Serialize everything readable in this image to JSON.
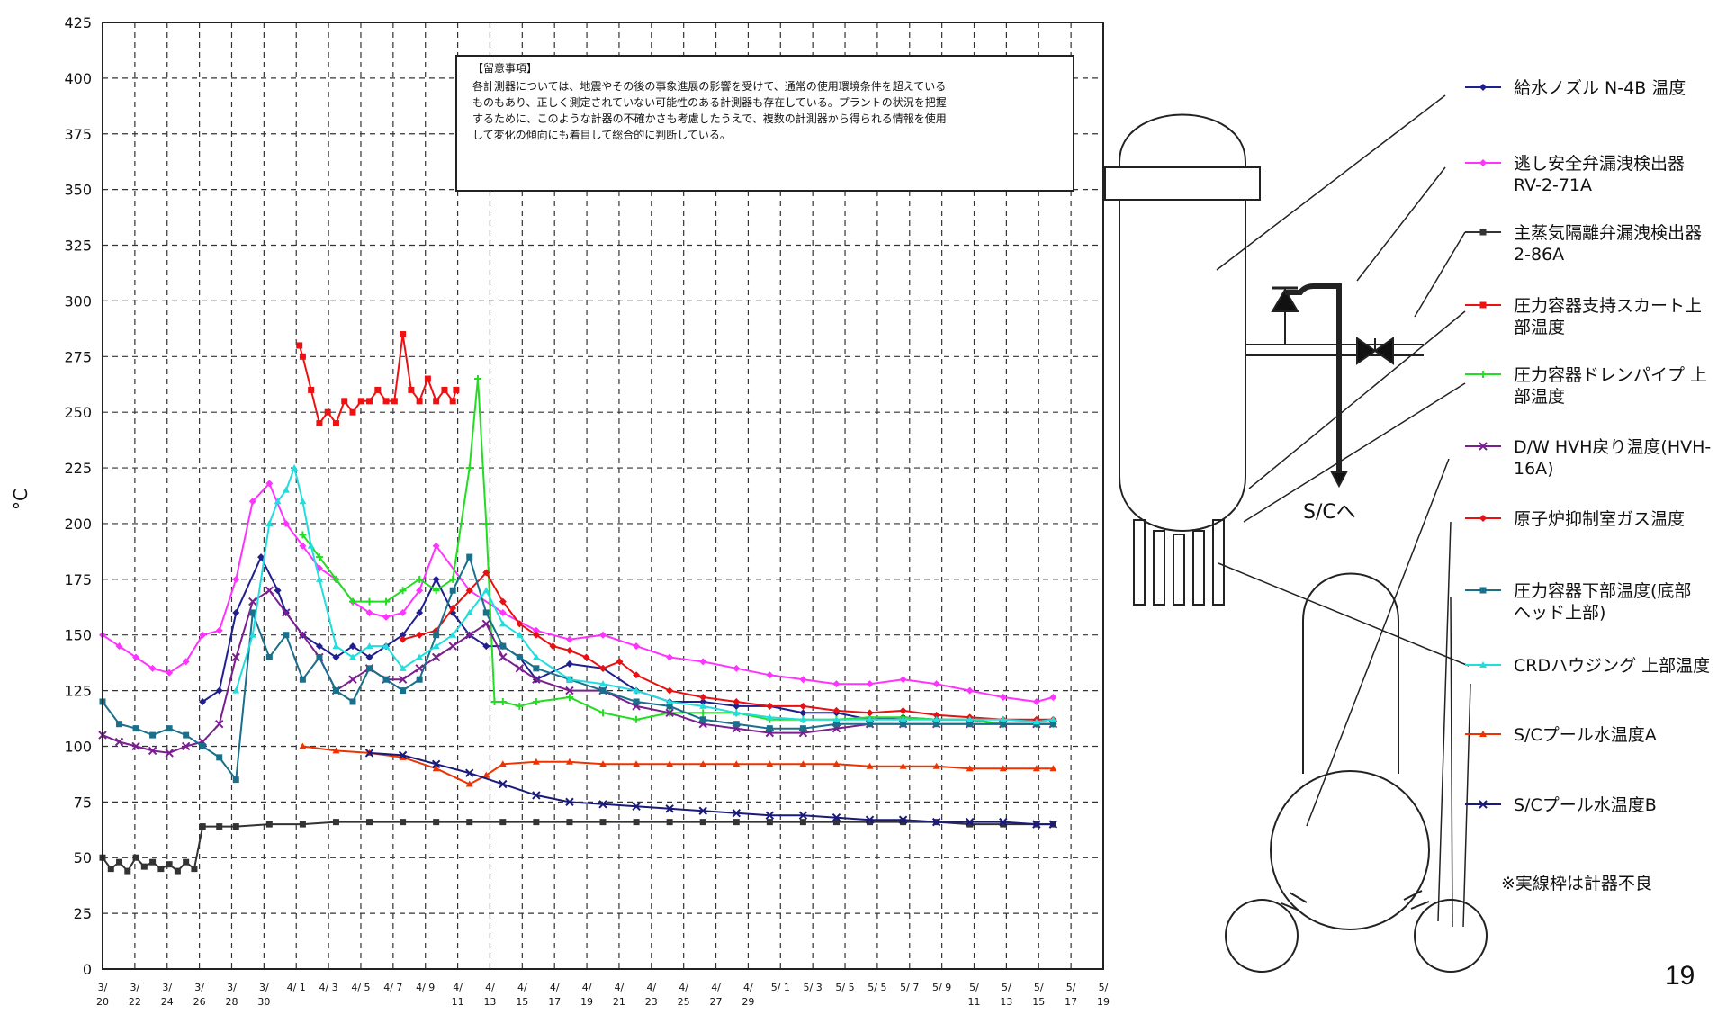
{
  "page_number": "19",
  "footnote": "※実線枠は計器不良",
  "sc_label": "S/Cへ",
  "note": {
    "title": "【留意事項】",
    "lines": [
      "各計測器については、地震やその後の事象進展の影響を受けて、通常の使用環境条件を超えている",
      "ものもあり、正しく測定されていない可能性のある計測器も存在している。プラントの状況を把握",
      "するために、このような計器の不確かさも考慮したうえで、複数の計測器から得られる情報を使用",
      "して変化の傾向にも着目して総合的に判断している。"
    ]
  },
  "chart_data": {
    "type": "line",
    "title": "",
    "xlabel": "",
    "ylabel": "°C",
    "ylim": [
      0,
      425
    ],
    "yticks": [
      0,
      25,
      50,
      75,
      100,
      125,
      150,
      175,
      200,
      225,
      250,
      275,
      300,
      325,
      350,
      375,
      400,
      425
    ],
    "x_range": [
      0,
      60
    ],
    "grid": true,
    "xtick_labels": [
      [
        "3/",
        "20"
      ],
      [
        "3/",
        "22"
      ],
      [
        "3/",
        "24"
      ],
      [
        "3/",
        "26"
      ],
      [
        "3/",
        "28"
      ],
      [
        "3/",
        "30"
      ],
      [
        "4/ 1",
        ""
      ],
      [
        "4/ 3",
        ""
      ],
      [
        "4/ 5",
        ""
      ],
      [
        "4/ 7",
        ""
      ],
      [
        "4/ 9",
        ""
      ],
      [
        "4/",
        "11"
      ],
      [
        "4/",
        "13"
      ],
      [
        "4/",
        "15"
      ],
      [
        "4/",
        "17"
      ],
      [
        "4/",
        "19"
      ],
      [
        "4/",
        "21"
      ],
      [
        "4/",
        "23"
      ],
      [
        "4/",
        "25"
      ],
      [
        "4/",
        "27"
      ],
      [
        "4/",
        "29"
      ],
      [
        "5/ 1",
        ""
      ],
      [
        "5/ 3",
        ""
      ],
      [
        "5/ 5",
        ""
      ],
      [
        "5/ 5",
        ""
      ],
      [
        "5/ 7",
        ""
      ],
      [
        "5/ 9",
        ""
      ],
      [
        "5/",
        "11"
      ],
      [
        "5/",
        "13"
      ],
      [
        "5/",
        "15"
      ],
      [
        "5/",
        "17"
      ],
      [
        "5/",
        "19"
      ]
    ],
    "series": [
      {
        "name": "給水ノズル N-4B 温度",
        "color": "#1f1f8f",
        "marker": "diamond",
        "x": [
          6,
          7,
          8,
          9.5,
          10.5,
          11,
          12,
          13,
          14,
          15,
          16,
          17,
          18,
          19,
          20,
          21,
          22,
          23,
          24,
          25,
          26,
          28,
          30,
          32,
          34,
          36,
          38,
          40,
          42,
          44,
          46,
          48,
          50,
          52,
          54,
          56,
          57
        ],
        "y": [
          120,
          125,
          160,
          185,
          170,
          160,
          150,
          145,
          140,
          145,
          140,
          145,
          150,
          160,
          175,
          160,
          150,
          145,
          145,
          140,
          130,
          137,
          135,
          125,
          120,
          120,
          118,
          118,
          115,
          115,
          112,
          113,
          112,
          112,
          110,
          110,
          110
        ]
      },
      {
        "name": "逃し安全弁漏洩検出器\nRV-2-71A",
        "color": "#ff33ff",
        "marker": "diamond",
        "x": [
          0,
          1,
          2,
          3,
          4,
          5,
          6,
          7,
          8,
          9,
          10,
          11,
          12,
          13,
          14,
          15,
          16,
          17,
          18,
          19,
          20,
          22,
          24,
          26,
          28,
          30,
          32,
          34,
          36,
          38,
          40,
          42,
          44,
          46,
          48,
          50,
          52,
          54,
          56,
          57
        ],
        "y": [
          150,
          145,
          140,
          135,
          133,
          138,
          150,
          152,
          175,
          210,
          218,
          200,
          190,
          180,
          175,
          165,
          160,
          158,
          160,
          170,
          190,
          170,
          160,
          152,
          148,
          150,
          145,
          140,
          138,
          135,
          132,
          130,
          128,
          128,
          130,
          128,
          125,
          122,
          120,
          122
        ]
      },
      {
        "name": "主蒸気隔離弁漏洩検出器\n2-86A",
        "color": "#333333",
        "marker": "square",
        "x": [
          0,
          0.5,
          1,
          1.5,
          2,
          2.5,
          3,
          3.5,
          4,
          4.5,
          5,
          5.5,
          6,
          7,
          8,
          10,
          12,
          14,
          16,
          18,
          20,
          22,
          24,
          26,
          28,
          30,
          32,
          34,
          36,
          38,
          40,
          42,
          44,
          46,
          48,
          50,
          52,
          54,
          56,
          57
        ],
        "y": [
          50,
          45,
          48,
          44,
          50,
          46,
          48,
          45,
          47,
          44,
          48,
          45,
          64,
          64,
          64,
          65,
          65,
          66,
          66,
          66,
          66,
          66,
          66,
          66,
          66,
          66,
          66,
          66,
          66,
          66,
          66,
          66,
          66,
          66,
          66,
          66,
          65,
          65,
          65,
          65
        ]
      },
      {
        "name": "圧力容器支持スカート上\n部温度",
        "color": "#ee1111",
        "marker": "square",
        "x": [
          11.8,
          12,
          12.5,
          13,
          13.5,
          14,
          14.5,
          15,
          15.5,
          16,
          16.5,
          17,
          17.5,
          18,
          18.5,
          19,
          19.5,
          20,
          20.5,
          21,
          21.2
        ],
        "y": [
          280,
          275,
          260,
          245,
          250,
          245,
          255,
          250,
          255,
          255,
          260,
          255,
          255,
          285,
          260,
          255,
          265,
          255,
          260,
          255,
          260
        ]
      },
      {
        "name": "圧力容器ドレンパイプ 上\n部温度",
        "color": "#22dd22",
        "marker": "plus",
        "x": [
          12,
          13,
          14,
          15,
          16,
          17,
          18,
          19,
          20,
          21,
          22,
          22.5,
          23,
          23.5,
          24,
          25,
          26,
          28,
          30,
          32,
          34,
          36,
          38,
          40,
          42,
          44,
          46,
          48,
          50,
          52,
          54,
          56,
          57
        ],
        "y": [
          195,
          185,
          175,
          165,
          165,
          165,
          170,
          175,
          170,
          175,
          225,
          265,
          200,
          120,
          120,
          118,
          120,
          122,
          115,
          112,
          115,
          115,
          115,
          112,
          112,
          112,
          113,
          113,
          112,
          112,
          110,
          110,
          110
        ]
      },
      {
        "name": "D/W HVH戻り温度(HVH-\n16A)",
        "color": "#7a1f8f",
        "marker": "x",
        "x": [
          0,
          1,
          2,
          3,
          4,
          5,
          6,
          7,
          8,
          9,
          10,
          11,
          12,
          13,
          14,
          15,
          16,
          17,
          18,
          19,
          20,
          21,
          22,
          23,
          24,
          25,
          26,
          28,
          30,
          32,
          34,
          36,
          38,
          40,
          42,
          44,
          46,
          48,
          50,
          52,
          54,
          56,
          57
        ],
        "y": [
          105,
          102,
          100,
          98,
          97,
          100,
          102,
          110,
          140,
          165,
          170,
          160,
          150,
          140,
          125,
          130,
          135,
          130,
          130,
          135,
          140,
          145,
          150,
          155,
          140,
          135,
          130,
          125,
          125,
          118,
          115,
          110,
          108,
          106,
          106,
          108,
          110,
          110,
          110,
          110,
          110,
          110,
          110
        ]
      },
      {
        "name": "原子炉抑制室ガス温度",
        "color": "#e81010",
        "marker": "diamond",
        "x": [
          18,
          19,
          20,
          21,
          22,
          23,
          24,
          25,
          26,
          27,
          28,
          29,
          30,
          31,
          32,
          34,
          36,
          38,
          40,
          42,
          44,
          46,
          48,
          50,
          52,
          54,
          56,
          57
        ],
        "y": [
          148,
          150,
          152,
          162,
          170,
          178,
          165,
          155,
          150,
          145,
          143,
          140,
          135,
          138,
          132,
          125,
          122,
          120,
          118,
          118,
          116,
          115,
          116,
          114,
          113,
          112,
          112,
          112
        ]
      },
      {
        "name": "圧力容器下部温度(底部\nヘッド上部)",
        "color": "#1a6f8a",
        "marker": "square",
        "x": [
          0,
          1,
          2,
          3,
          4,
          5,
          6,
          7,
          8,
          9,
          10,
          11,
          12,
          13,
          14,
          15,
          16,
          17,
          18,
          19,
          20,
          21,
          22,
          23,
          24,
          25,
          26,
          28,
          30,
          32,
          34,
          36,
          38,
          40,
          42,
          44,
          46,
          48,
          50,
          52,
          54,
          56,
          57
        ],
        "y": [
          120,
          110,
          108,
          105,
          108,
          105,
          100,
          95,
          85,
          160,
          140,
          150,
          130,
          140,
          125,
          120,
          135,
          130,
          125,
          130,
          150,
          170,
          185,
          160,
          145,
          140,
          135,
          130,
          125,
          120,
          118,
          112,
          110,
          108,
          108,
          110,
          110,
          110,
          110,
          110,
          110,
          110,
          110
        ]
      },
      {
        "name": "CRDハウジング 上部温度",
        "color": "#22dddd",
        "marker": "triangle",
        "x": [
          8,
          9,
          10,
          10.5,
          11,
          11.5,
          12,
          12.5,
          13,
          14,
          15,
          16,
          17,
          18,
          19,
          20,
          21,
          22,
          23,
          24,
          25,
          26,
          28,
          30,
          32,
          34,
          36,
          38,
          40,
          42,
          44,
          46,
          48,
          50,
          52,
          54,
          56,
          57
        ],
        "y": [
          125,
          150,
          200,
          210,
          215,
          225,
          210,
          190,
          175,
          145,
          140,
          145,
          145,
          135,
          140,
          145,
          150,
          160,
          170,
          155,
          150,
          140,
          130,
          128,
          125,
          120,
          118,
          115,
          113,
          112,
          112,
          112,
          112,
          112,
          112,
          112,
          111,
          112
        ]
      },
      {
        "name": "S/Cプール水温度A",
        "color": "#ee3300",
        "marker": "triangle",
        "x": [
          12,
          14,
          16,
          18,
          20,
          22,
          23,
          24,
          26,
          28,
          30,
          32,
          34,
          36,
          38,
          40,
          42,
          44,
          46,
          48,
          50,
          52,
          54,
          56,
          57
        ],
        "y": [
          100,
          98,
          97,
          95,
          90,
          83,
          87,
          92,
          93,
          93,
          92,
          92,
          92,
          92,
          92,
          92,
          92,
          92,
          91,
          91,
          91,
          90,
          90,
          90,
          90
        ]
      },
      {
        "name": "S/Cプール水温度B",
        "color": "#1a1a7a",
        "marker": "x",
        "x": [
          16,
          18,
          20,
          22,
          24,
          26,
          28,
          30,
          32,
          34,
          36,
          38,
          40,
          42,
          44,
          46,
          48,
          50,
          52,
          54,
          56,
          57
        ],
        "y": [
          97,
          96,
          92,
          88,
          83,
          78,
          75,
          74,
          73,
          72,
          71,
          70,
          69,
          69,
          68,
          67,
          67,
          66,
          66,
          66,
          65,
          65
        ]
      }
    ]
  }
}
